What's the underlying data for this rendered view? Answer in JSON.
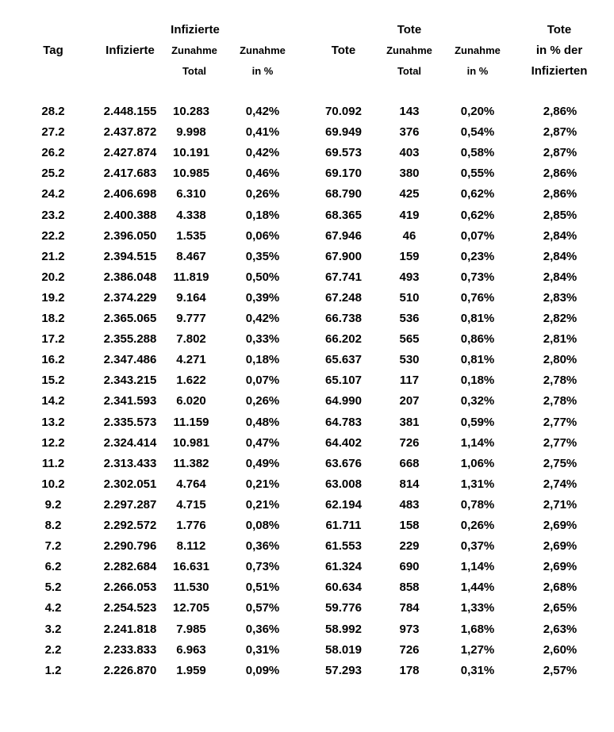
{
  "header": {
    "tag": "Tag",
    "infizierte": "Infizierte",
    "infizierte_group": "Infizierte",
    "inf_zunahme": "Zunahme",
    "inf_total": "Total",
    "inf_zunahme_pct": "Zunahme",
    "inf_in_pct": "in %",
    "tote": "Tote",
    "tote_group": "Tote",
    "tote_zunahme": "Zunahme",
    "tote_total": "Total",
    "tote_zunahme_pct": "Zunahme",
    "tote_in_pct": "in %",
    "ratio_line1": "Tote",
    "ratio_line2": "in % der",
    "ratio_line3": "Infizierten"
  },
  "rows": [
    {
      "tag": "28.2",
      "infizierte": "2.448.155",
      "inf_zunahme": "10.283",
      "inf_pct": "0,42%",
      "tote": "70.092",
      "tote_zunahme": "143",
      "tote_pct": "0,20%",
      "ratio": "2,86%"
    },
    {
      "tag": "27.2",
      "infizierte": "2.437.872",
      "inf_zunahme": "9.998",
      "inf_pct": "0,41%",
      "tote": "69.949",
      "tote_zunahme": "376",
      "tote_pct": "0,54%",
      "ratio": "2,87%"
    },
    {
      "tag": "26.2",
      "infizierte": "2.427.874",
      "inf_zunahme": "10.191",
      "inf_pct": "0,42%",
      "tote": "69.573",
      "tote_zunahme": "403",
      "tote_pct": "0,58%",
      "ratio": "2,87%"
    },
    {
      "tag": "25.2",
      "infizierte": "2.417.683",
      "inf_zunahme": "10.985",
      "inf_pct": "0,46%",
      "tote": "69.170",
      "tote_zunahme": "380",
      "tote_pct": "0,55%",
      "ratio": "2,86%"
    },
    {
      "tag": "24.2",
      "infizierte": "2.406.698",
      "inf_zunahme": "6.310",
      "inf_pct": "0,26%",
      "tote": "68.790",
      "tote_zunahme": "425",
      "tote_pct": "0,62%",
      "ratio": "2,86%"
    },
    {
      "tag": "23.2",
      "infizierte": "2.400.388",
      "inf_zunahme": "4.338",
      "inf_pct": "0,18%",
      "tote": "68.365",
      "tote_zunahme": "419",
      "tote_pct": "0,62%",
      "ratio": "2,85%"
    },
    {
      "tag": "22.2",
      "infizierte": "2.396.050",
      "inf_zunahme": "1.535",
      "inf_pct": "0,06%",
      "tote": "67.946",
      "tote_zunahme": "46",
      "tote_pct": "0,07%",
      "ratio": "2,84%"
    },
    {
      "tag": "21.2",
      "infizierte": "2.394.515",
      "inf_zunahme": "8.467",
      "inf_pct": "0,35%",
      "tote": "67.900",
      "tote_zunahme": "159",
      "tote_pct": "0,23%",
      "ratio": "2,84%"
    },
    {
      "tag": "20.2",
      "infizierte": "2.386.048",
      "inf_zunahme": "11.819",
      "inf_pct": "0,50%",
      "tote": "67.741",
      "tote_zunahme": "493",
      "tote_pct": "0,73%",
      "ratio": "2,84%"
    },
    {
      "tag": "19.2",
      "infizierte": "2.374.229",
      "inf_zunahme": "9.164",
      "inf_pct": "0,39%",
      "tote": "67.248",
      "tote_zunahme": "510",
      "tote_pct": "0,76%",
      "ratio": "2,83%"
    },
    {
      "tag": "18.2",
      "infizierte": "2.365.065",
      "inf_zunahme": "9.777",
      "inf_pct": "0,42%",
      "tote": "66.738",
      "tote_zunahme": "536",
      "tote_pct": "0,81%",
      "ratio": "2,82%"
    },
    {
      "tag": "17.2",
      "infizierte": "2.355.288",
      "inf_zunahme": "7.802",
      "inf_pct": "0,33%",
      "tote": "66.202",
      "tote_zunahme": "565",
      "tote_pct": "0,86%",
      "ratio": "2,81%"
    },
    {
      "tag": "16.2",
      "infizierte": "2.347.486",
      "inf_zunahme": "4.271",
      "inf_pct": "0,18%",
      "tote": "65.637",
      "tote_zunahme": "530",
      "tote_pct": "0,81%",
      "ratio": "2,80%"
    },
    {
      "tag": "15.2",
      "infizierte": "2.343.215",
      "inf_zunahme": "1.622",
      "inf_pct": "0,07%",
      "tote": "65.107",
      "tote_zunahme": "117",
      "tote_pct": "0,18%",
      "ratio": "2,78%"
    },
    {
      "tag": "14.2",
      "infizierte": "2.341.593",
      "inf_zunahme": "6.020",
      "inf_pct": "0,26%",
      "tote": "64.990",
      "tote_zunahme": "207",
      "tote_pct": "0,32%",
      "ratio": "2,78%"
    },
    {
      "tag": "13.2",
      "infizierte": "2.335.573",
      "inf_zunahme": "11.159",
      "inf_pct": "0,48%",
      "tote": "64.783",
      "tote_zunahme": "381",
      "tote_pct": "0,59%",
      "ratio": "2,77%"
    },
    {
      "tag": "12.2",
      "infizierte": "2.324.414",
      "inf_zunahme": "10.981",
      "inf_pct": "0,47%",
      "tote": "64.402",
      "tote_zunahme": "726",
      "tote_pct": "1,14%",
      "ratio": "2,77%"
    },
    {
      "tag": "11.2",
      "infizierte": "2.313.433",
      "inf_zunahme": "11.382",
      "inf_pct": "0,49%",
      "tote": "63.676",
      "tote_zunahme": "668",
      "tote_pct": "1,06%",
      "ratio": "2,75%"
    },
    {
      "tag": "10.2",
      "infizierte": "2.302.051",
      "inf_zunahme": "4.764",
      "inf_pct": "0,21%",
      "tote": "63.008",
      "tote_zunahme": "814",
      "tote_pct": "1,31%",
      "ratio": "2,74%"
    },
    {
      "tag": "9.2",
      "infizierte": "2.297.287",
      "inf_zunahme": "4.715",
      "inf_pct": "0,21%",
      "tote": "62.194",
      "tote_zunahme": "483",
      "tote_pct": "0,78%",
      "ratio": "2,71%"
    },
    {
      "tag": "8.2",
      "infizierte": "2.292.572",
      "inf_zunahme": "1.776",
      "inf_pct": "0,08%",
      "tote": "61.711",
      "tote_zunahme": "158",
      "tote_pct": "0,26%",
      "ratio": "2,69%"
    },
    {
      "tag": "7.2",
      "infizierte": "2.290.796",
      "inf_zunahme": "8.112",
      "inf_pct": "0,36%",
      "tote": "61.553",
      "tote_zunahme": "229",
      "tote_pct": "0,37%",
      "ratio": "2,69%"
    },
    {
      "tag": "6.2",
      "infizierte": "2.282.684",
      "inf_zunahme": "16.631",
      "inf_pct": "0,73%",
      "tote": "61.324",
      "tote_zunahme": "690",
      "tote_pct": "1,14%",
      "ratio": "2,69%"
    },
    {
      "tag": "5.2",
      "infizierte": "2.266.053",
      "inf_zunahme": "11.530",
      "inf_pct": "0,51%",
      "tote": "60.634",
      "tote_zunahme": "858",
      "tote_pct": "1,44%",
      "ratio": "2,68%"
    },
    {
      "tag": "4.2",
      "infizierte": "2.254.523",
      "inf_zunahme": "12.705",
      "inf_pct": "0,57%",
      "tote": "59.776",
      "tote_zunahme": "784",
      "tote_pct": "1,33%",
      "ratio": "2,65%"
    },
    {
      "tag": "3.2",
      "infizierte": "2.241.818",
      "inf_zunahme": "7.985",
      "inf_pct": "0,36%",
      "tote": "58.992",
      "tote_zunahme": "973",
      "tote_pct": "1,68%",
      "ratio": "2,63%"
    },
    {
      "tag": "2.2",
      "infizierte": "2.233.833",
      "inf_zunahme": "6.963",
      "inf_pct": "0,31%",
      "tote": "58.019",
      "tote_zunahme": "726",
      "tote_pct": "1,27%",
      "ratio": "2,60%"
    },
    {
      "tag": "1.2",
      "infizierte": "2.226.870",
      "inf_zunahme": "1.959",
      "inf_pct": "0,09%",
      "tote": "57.293",
      "tote_zunahme": "178",
      "tote_pct": "0,31%",
      "ratio": "2,57%"
    }
  ]
}
